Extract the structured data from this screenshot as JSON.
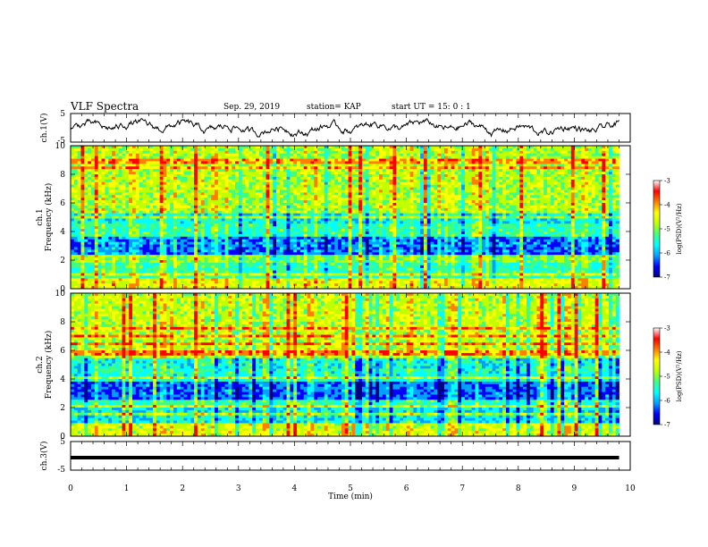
{
  "chart_data": {
    "type": "heatmap",
    "title": "VLF Spectra",
    "date": "Sep. 29, 2019",
    "station": "station= KAP",
    "start_ut": "start  UT =   15: 0  : 1",
    "xlabel": "Time  (min)",
    "xlim": [
      0,
      10
    ],
    "xticks": [
      "0",
      "1",
      "2",
      "3",
      "4",
      "5",
      "6",
      "7",
      "8",
      "9",
      "10"
    ],
    "data_extent_min": 9.8,
    "panels": [
      {
        "name": "ch1-waveform",
        "ylabel": "ch.1(V)",
        "ylim": [
          -5,
          5
        ],
        "yticks": [
          "5",
          "-5"
        ],
        "trace": "noisy waveform fluctuating roughly between -3 and 3 V"
      },
      {
        "name": "ch1-spectrogram",
        "ylabel": [
          "ch.1",
          "Frequency  (kHz)"
        ],
        "ylim": [
          0,
          10
        ],
        "yticks": [
          "0",
          "2",
          "4",
          "6",
          "8",
          "10"
        ],
        "colorbar": {
          "label": "log(PSD)(V²/Hz)",
          "range": [
            -7,
            -3
          ],
          "ticks": [
            "-3",
            "-4",
            "-5",
            "-6",
            "-7"
          ],
          "colormap": [
            "#000080",
            "#0000ff",
            "#00a0ff",
            "#00ffff",
            "#40ff80",
            "#c0ff00",
            "#ffff00",
            "#ff8000",
            "#ff0000",
            "#ffffff"
          ]
        },
        "bands": [
          {
            "freq_khz": [
              0,
              0.8
            ],
            "level": -4.3
          },
          {
            "freq_khz": [
              0.8,
              1.8
            ],
            "level": -5.2
          },
          {
            "freq_khz": [
              1.8,
              2.4
            ],
            "level": -4.8
          },
          {
            "freq_khz": [
              2.4,
              3.6
            ],
            "level": -6.0
          },
          {
            "freq_khz": [
              3.6,
              4.6
            ],
            "level": -5.2
          },
          {
            "freq_khz": [
              4.6,
              5.2
            ],
            "level": -5.5
          },
          {
            "freq_khz": [
              5.2,
              10
            ],
            "level": -4.6
          }
        ]
      },
      {
        "name": "ch2-spectrogram",
        "ylabel": [
          "ch.2",
          "Frequency  (kHz)"
        ],
        "ylim": [
          0,
          10
        ],
        "yticks": [
          "0",
          "2",
          "4",
          "6",
          "8",
          "10"
        ],
        "colorbar": {
          "label": "log(PSD)(V²/Hz)",
          "range": [
            -7,
            -3
          ],
          "ticks": [
            "-3",
            "-4",
            "-5",
            "-6",
            "-7"
          ],
          "colormap": [
            "#000080",
            "#0000ff",
            "#00a0ff",
            "#00ffff",
            "#40ff80",
            "#c0ff00",
            "#ffff00",
            "#ff8000",
            "#ff0000",
            "#ffffff"
          ]
        },
        "bands": [
          {
            "freq_khz": [
              0,
              0.9
            ],
            "level": -4.4
          },
          {
            "freq_khz": [
              0.9,
              2.0
            ],
            "level": -5.5
          },
          {
            "freq_khz": [
              2.0,
              2.6
            ],
            "level": -5.2
          },
          {
            "freq_khz": [
              2.6,
              3.8
            ],
            "level": -6.1
          },
          {
            "freq_khz": [
              3.8,
              4.8
            ],
            "level": -5.3
          },
          {
            "freq_khz": [
              4.8,
              5.4
            ],
            "level": -5.4
          },
          {
            "freq_khz": [
              5.4,
              10
            ],
            "level": -4.5
          }
        ]
      },
      {
        "name": "ch3-waveform",
        "ylabel": "ch.3(V)",
        "ylim": [
          -5,
          5
        ],
        "yticks": [
          "5",
          "-5"
        ],
        "trace": "flat line near -1 V"
      }
    ]
  }
}
